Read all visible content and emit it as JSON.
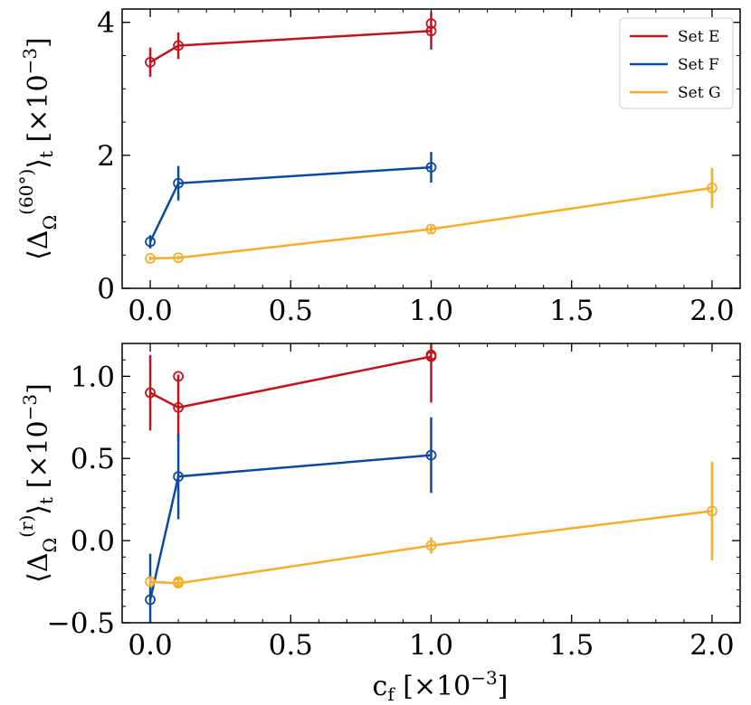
{
  "chart_data": [
    {
      "type": "line",
      "panel": "top",
      "ylabel": "⟨Δ_Ω^(60°)⟩_t [×10⁻³]",
      "xlabel": "",
      "xlim": [
        -0.1,
        2.1
      ],
      "ylim": [
        0,
        4.2
      ],
      "x_ticks": [
        0.0,
        0.5,
        1.0,
        1.5,
        2.0
      ],
      "x_tick_labels": [
        "0.0",
        "0.5",
        "1.0",
        "1.5",
        "2.0"
      ],
      "y_ticks": [
        0,
        2,
        4
      ],
      "y_tick_labels": [
        "0",
        "2",
        "4"
      ],
      "grid": false,
      "legend": {
        "position": "top-right",
        "entries": [
          "Set E",
          "Set F",
          "Set G"
        ]
      },
      "series": [
        {
          "name": "Set E",
          "color": "#c0141e",
          "x": [
            0.0,
            0.1,
            1.0
          ],
          "y": [
            3.4,
            3.65,
            3.87
          ],
          "err": [
            0.22,
            0.2,
            0.28
          ],
          "extra_points": [
            {
              "x": 1.0,
              "y": 3.98
            }
          ]
        },
        {
          "name": "Set F",
          "color": "#0b4a9c",
          "x": [
            0.0,
            0.1,
            1.0
          ],
          "y": [
            0.7,
            1.58,
            1.82
          ],
          "err": [
            0.1,
            0.26,
            0.23
          ],
          "extra_points": []
        },
        {
          "name": "Set G",
          "color": "#f6ae28",
          "x": [
            0.0,
            0.1,
            1.0,
            2.0
          ],
          "y": [
            0.45,
            0.46,
            0.89,
            1.51
          ],
          "err": [
            0.03,
            0.03,
            0.05,
            0.3
          ],
          "extra_points": []
        }
      ]
    },
    {
      "type": "line",
      "panel": "bottom",
      "ylabel": "⟨Δ_Ω^(r)⟩_t [×10⁻³]",
      "xlabel": "c_f [×10⁻³]",
      "xlim": [
        -0.1,
        2.1
      ],
      "ylim": [
        -0.5,
        1.2
      ],
      "x_ticks": [
        0.0,
        0.5,
        1.0,
        1.5,
        2.0
      ],
      "x_tick_labels": [
        "0.0",
        "0.5",
        "1.0",
        "1.5",
        "2.0"
      ],
      "y_ticks": [
        -0.5,
        0.0,
        0.5,
        1.0
      ],
      "y_tick_labels": [
        "−0.5",
        "0.0",
        "0.5",
        "1.0"
      ],
      "grid": false,
      "series": [
        {
          "name": "Set E",
          "color": "#c0141e",
          "x": [
            0.0,
            0.1,
            1.0
          ],
          "y": [
            0.9,
            0.81,
            1.12
          ],
          "err": [
            0.23,
            0.2,
            0.28
          ],
          "extra_points": [
            {
              "x": 0.1,
              "y": 1.0
            },
            {
              "x": 1.0,
              "y": 1.13
            }
          ]
        },
        {
          "name": "Set F",
          "color": "#0b4a9c",
          "x": [
            0.0,
            0.1,
            1.0
          ],
          "y": [
            -0.36,
            0.39,
            0.52
          ],
          "err": [
            0.28,
            0.26,
            0.23
          ],
          "extra_points": []
        },
        {
          "name": "Set G",
          "color": "#f6ae28",
          "x": [
            0.0,
            0.1,
            1.0,
            2.0
          ],
          "y": [
            -0.25,
            -0.26,
            -0.03,
            0.18
          ],
          "err": [
            0.03,
            0.03,
            0.05,
            0.3
          ],
          "extra_points": [
            {
              "x": 0.1,
              "y": -0.25
            }
          ]
        }
      ]
    }
  ]
}
